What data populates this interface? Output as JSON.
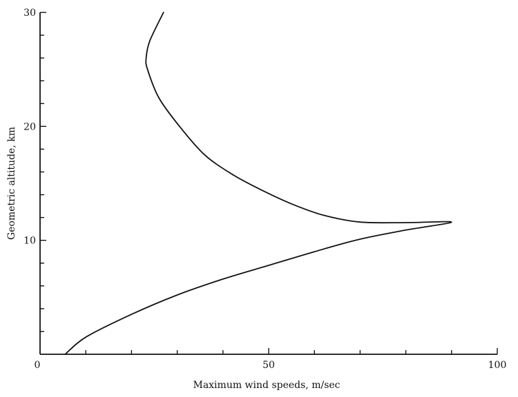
{
  "chart_data": {
    "type": "line",
    "title": "",
    "xlabel": "Maximum wind speeds, m/sec",
    "ylabel": "Geometric altitude, km",
    "xlim": [
      0,
      100
    ],
    "ylim": [
      0,
      30
    ],
    "x_ticks": [
      0,
      50,
      100
    ],
    "y_ticks": [
      10,
      20,
      30
    ],
    "grid": false,
    "series": [
      {
        "points": [
          {
            "x": 5.5,
            "y": 0
          },
          {
            "x": 10,
            "y": 1.5
          },
          {
            "x": 20,
            "y": 3.5
          },
          {
            "x": 30,
            "y": 5.2
          },
          {
            "x": 40,
            "y": 6.6
          },
          {
            "x": 50,
            "y": 7.8
          },
          {
            "x": 60,
            "y": 9.0
          },
          {
            "x": 70,
            "y": 10.1
          },
          {
            "x": 80,
            "y": 10.9
          },
          {
            "x": 90,
            "y": 11.6
          },
          {
            "x": 80,
            "y": 11.55
          },
          {
            "x": 70,
            "y": 11.6
          },
          {
            "x": 62,
            "y": 12.2
          },
          {
            "x": 55,
            "y": 13.2
          },
          {
            "x": 48,
            "y": 14.5
          },
          {
            "x": 42,
            "y": 15.8
          },
          {
            "x": 36,
            "y": 17.5
          },
          {
            "x": 30.5,
            "y": 20.0
          },
          {
            "x": 26,
            "y": 22.5
          },
          {
            "x": 23.5,
            "y": 25.0
          },
          {
            "x": 23.2,
            "y": 26.0
          },
          {
            "x": 24,
            "y": 27.5
          },
          {
            "x": 27,
            "y": 30.0
          }
        ]
      }
    ]
  }
}
